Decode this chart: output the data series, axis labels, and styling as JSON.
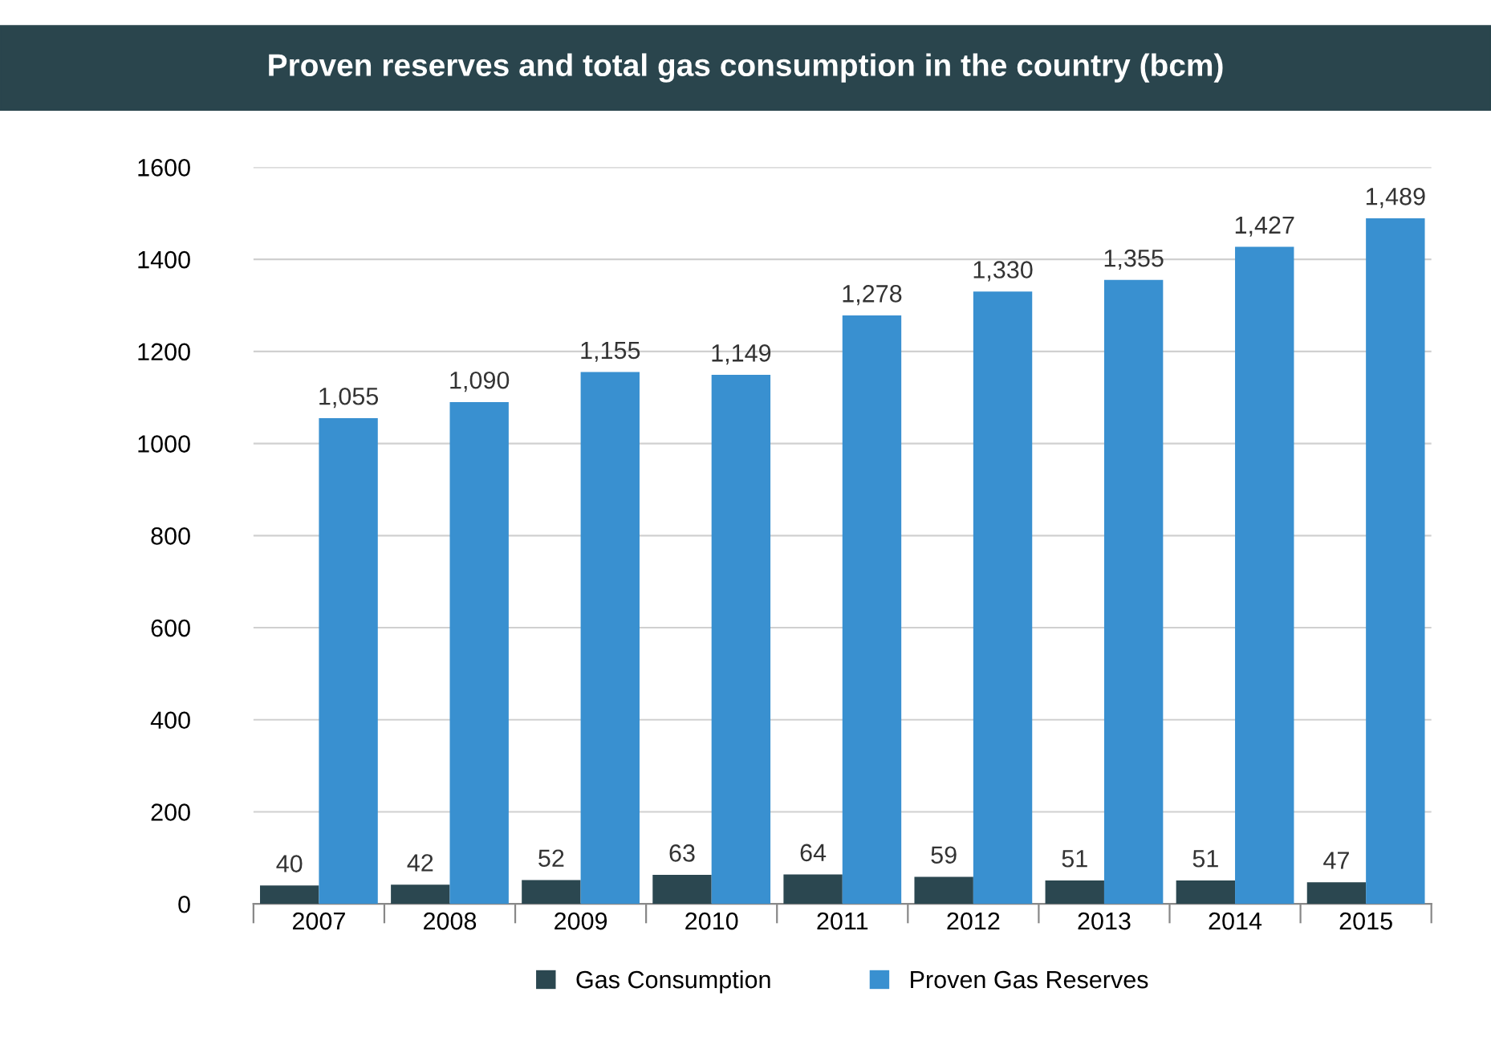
{
  "chart_data": {
    "type": "bar",
    "title": "Proven reserves and total gas consumption in the country (bcm)",
    "categories": [
      "2007",
      "2008",
      "2009",
      "2010",
      "2011",
      "2012",
      "2013",
      "2014",
      "2015"
    ],
    "series": [
      {
        "name": "Gas Consumption",
        "color": "#2b4750",
        "values": [
          40,
          42,
          52,
          63,
          64,
          59,
          51,
          51,
          47
        ]
      },
      {
        "name": "Proven Gas Reserves",
        "color": "#3990d0",
        "values": [
          1055,
          1090,
          1155,
          1149,
          1278,
          1330,
          1355,
          1427,
          1489
        ]
      }
    ],
    "value_labels": [
      [
        "40",
        "42",
        "52",
        "63",
        "64",
        "59",
        "51",
        "51",
        "47"
      ],
      [
        "1,055",
        "1,090",
        "1,155",
        "1,149",
        "1,278",
        "1,330",
        "1,355",
        "1,427",
        "1,489"
      ]
    ],
    "ylim": [
      0,
      1600
    ],
    "yticks": [
      0,
      200,
      400,
      600,
      800,
      1000,
      1200,
      1400,
      1600
    ],
    "grid": "y",
    "legend": "bottom"
  }
}
